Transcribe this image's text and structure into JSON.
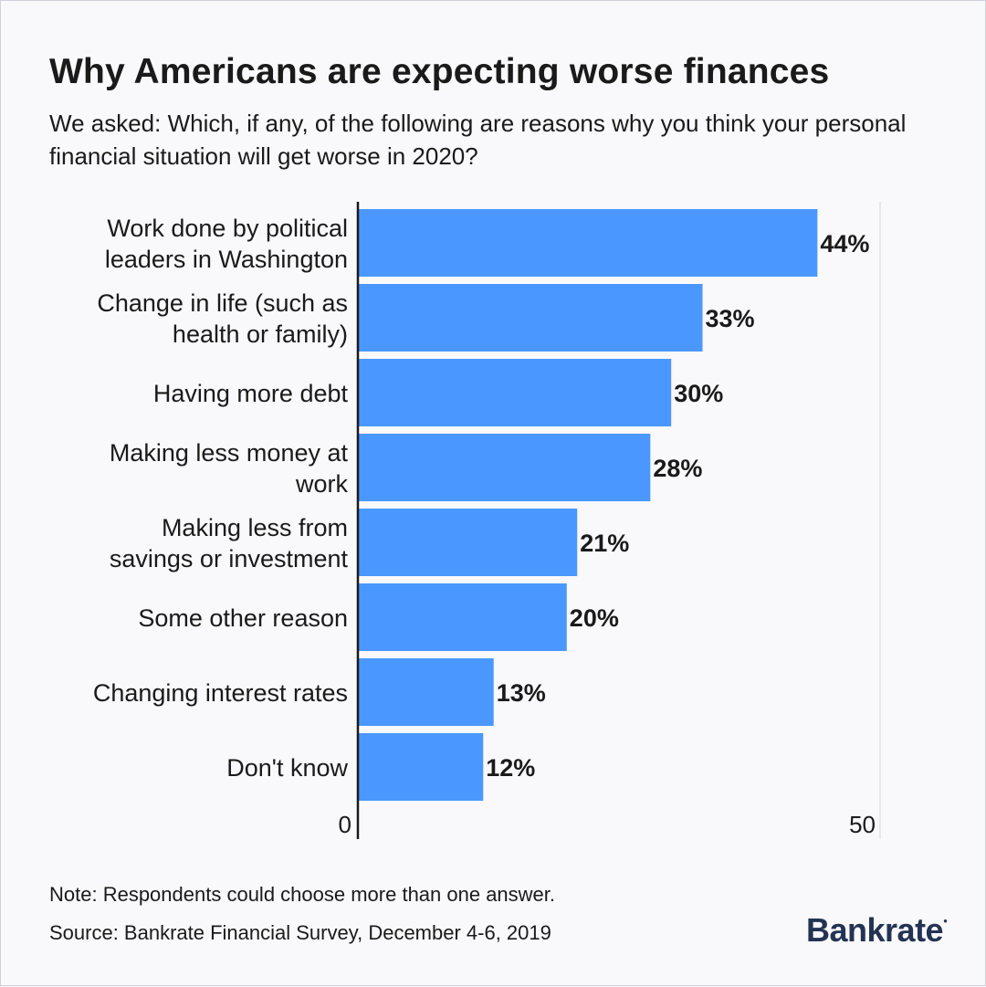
{
  "chart_data": {
    "type": "bar",
    "orientation": "horizontal",
    "title": "Why Americans are expecting worse finances",
    "subtitle": "We asked: Which, if any, of the following are reasons why you think your personal financial situation will get worse in 2020?",
    "categories": [
      [
        "Work done by political",
        "leaders in Washington"
      ],
      [
        "Change in life (such as",
        "health or family)"
      ],
      [
        "Having more debt"
      ],
      [
        "Making less money at",
        "work"
      ],
      [
        "Making less from",
        "savings or investment"
      ],
      [
        "Some other reason"
      ],
      [
        "Changing interest rates"
      ],
      [
        "Don't know"
      ]
    ],
    "values": [
      44,
      33,
      30,
      28,
      21,
      20,
      13,
      12
    ],
    "value_labels": [
      "44%",
      "33%",
      "30%",
      "28%",
      "21%",
      "20%",
      "13%",
      "12%"
    ],
    "xlim": [
      0,
      50
    ],
    "ticks": [
      "0",
      "50"
    ],
    "grid": false,
    "bar_color": "#4a98ff"
  },
  "footer": {
    "note": "Note: Respondents could choose more than one answer.",
    "source": "Source: Bankrate Financial Survey, December 4-6, 2019",
    "logo": "Bankrate"
  }
}
